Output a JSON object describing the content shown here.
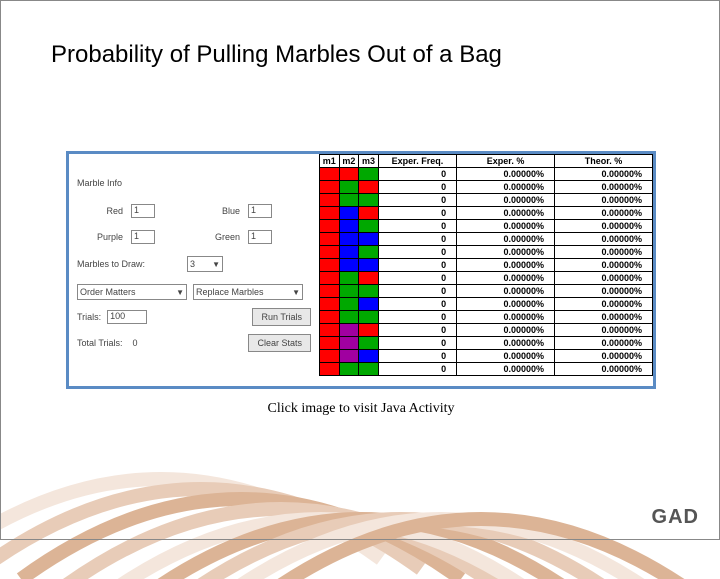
{
  "title": "Probability of Pulling Marbles Out of a Bag",
  "caption": "Click image to visit Java Activity",
  "brand": "GAD",
  "colors": {
    "applet_border": "#5a8bc4",
    "red": "#ff0000",
    "blue": "#0000ff",
    "green": "#00a800",
    "purple": "#a000a0",
    "swirl1": "#f4e6dc",
    "swirl2": "#e8ccb8",
    "swirl3": "#dcb496"
  },
  "panel": {
    "section": "Marble Info",
    "marbles": {
      "red_label": "Red",
      "red_value": "1",
      "blue_label": "Blue",
      "blue_value": "1",
      "purple_label": "Purple",
      "purple_value": "1",
      "green_label": "Green",
      "green_value": "1"
    },
    "draw": {
      "label": "Marbles to Draw:",
      "value": "3"
    },
    "order": {
      "label": "Order Matters"
    },
    "replace": {
      "label": "Replace Marbles"
    },
    "trials": {
      "label": "Trials:",
      "value": "100"
    },
    "run_btn": "Run Trials",
    "total": {
      "label": "Total Trials:",
      "value": "0"
    },
    "clear_btn": "Clear Stats"
  },
  "table": {
    "headers": {
      "m1": "m1",
      "m2": "m2",
      "m3": "m3",
      "ef": "Exper. Freq.",
      "ep": "Exper. %",
      "tp": "Theor. %"
    },
    "rows": [
      {
        "c": [
          "red",
          "red",
          "green"
        ],
        "ef": "0",
        "ep": "0.00000%",
        "tp": "0.00000%"
      },
      {
        "c": [
          "red",
          "green",
          "red"
        ],
        "ef": "0",
        "ep": "0.00000%",
        "tp": "0.00000%"
      },
      {
        "c": [
          "red",
          "green",
          "green"
        ],
        "ef": "0",
        "ep": "0.00000%",
        "tp": "0.00000%"
      },
      {
        "c": [
          "red",
          "blue",
          "red"
        ],
        "ef": "0",
        "ep": "0.00000%",
        "tp": "0.00000%"
      },
      {
        "c": [
          "red",
          "blue",
          "green"
        ],
        "ef": "0",
        "ep": "0.00000%",
        "tp": "0.00000%"
      },
      {
        "c": [
          "red",
          "blue",
          "blue"
        ],
        "ef": "0",
        "ep": "0.00000%",
        "tp": "0.00000%"
      },
      {
        "c": [
          "red",
          "blue",
          "green"
        ],
        "ef": "0",
        "ep": "0.00000%",
        "tp": "0.00000%"
      },
      {
        "c": [
          "red",
          "blue",
          "blue"
        ],
        "ef": "0",
        "ep": "0.00000%",
        "tp": "0.00000%"
      },
      {
        "c": [
          "red",
          "green",
          "red"
        ],
        "ef": "0",
        "ep": "0.00000%",
        "tp": "0.00000%"
      },
      {
        "c": [
          "red",
          "green",
          "green"
        ],
        "ef": "0",
        "ep": "0.00000%",
        "tp": "0.00000%"
      },
      {
        "c": [
          "red",
          "green",
          "blue"
        ],
        "ef": "0",
        "ep": "0.00000%",
        "tp": "0.00000%"
      },
      {
        "c": [
          "red",
          "green",
          "green"
        ],
        "ef": "0",
        "ep": "0.00000%",
        "tp": "0.00000%"
      },
      {
        "c": [
          "red",
          "purple",
          "red"
        ],
        "ef": "0",
        "ep": "0.00000%",
        "tp": "0.00000%"
      },
      {
        "c": [
          "red",
          "purple",
          "green"
        ],
        "ef": "0",
        "ep": "0.00000%",
        "tp": "0.00000%"
      },
      {
        "c": [
          "red",
          "purple",
          "blue"
        ],
        "ef": "0",
        "ep": "0.00000%",
        "tp": "0.00000%"
      },
      {
        "c": [
          "red",
          "green",
          "green"
        ],
        "ef": "0",
        "ep": "0.00000%",
        "tp": "0.00000%"
      }
    ]
  }
}
